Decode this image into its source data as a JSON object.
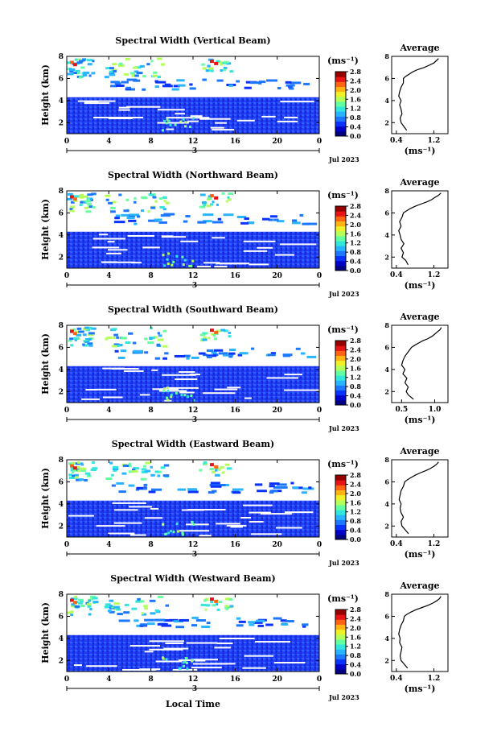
{
  "figure": {
    "date_label": "Jul 2023",
    "day_label": "3",
    "bottom_xlabel": "Local Time"
  },
  "colors": {
    "colormap": [
      "#000080",
      "#0000c8",
      "#0a32ff",
      "#1e78ff",
      "#28b4ff",
      "#32e6dc",
      "#64ffa0",
      "#b4ff5a",
      "#f0f028",
      "#ffb414",
      "#ff6414",
      "#e61414",
      "#960000"
    ],
    "trace": "#000000"
  },
  "chart_data": [
    {
      "type": "heatmap",
      "title": "Spectral Width (Vertical Beam)",
      "xlabel": "",
      "ylabel": "Height (km)",
      "x_ticks": [
        "0",
        "4",
        "8",
        "12",
        "16",
        "20",
        "0"
      ],
      "y_ticks": [
        "2",
        "4",
        "6",
        "8"
      ],
      "xlim": [
        0,
        24
      ],
      "ylim": [
        1,
        8
      ],
      "colorbar": {
        "label": "(ms⁻¹)",
        "ticks": [
          "0.0",
          "0.4",
          "0.8",
          "1.2",
          "1.6",
          "2.0",
          "2.4",
          "2.8"
        ],
        "range": [
          0,
          2.8
        ]
      },
      "average_profile": {
        "title": "Average",
        "xlabel": "(ms⁻¹)",
        "x_ticks": [
          "0.4",
          "1.2"
        ],
        "xlim": [
          0.3,
          1.5
        ],
        "y_ticks": [
          "2",
          "4",
          "6",
          "8"
        ],
        "x": [
          0.62,
          0.55,
          0.5,
          0.48,
          0.52,
          0.5,
          0.47,
          0.5,
          0.45,
          0.47,
          0.5,
          0.55,
          0.55,
          0.6,
          0.68,
          0.75,
          0.85,
          1.0,
          1.1,
          1.2,
          1.25,
          1.3
        ],
        "y": [
          1.3,
          1.7,
          2.0,
          2.4,
          2.8,
          3.2,
          3.6,
          4.0,
          4.4,
          4.8,
          5.2,
          5.6,
          6.0,
          6.2,
          6.4,
          6.6,
          6.8,
          7.0,
          7.2,
          7.4,
          7.6,
          7.8
        ]
      }
    },
    {
      "type": "heatmap",
      "title": "Spectral Width (Northward Beam)",
      "xlabel": "",
      "ylabel": "Height (km)",
      "x_ticks": [
        "0",
        "4",
        "8",
        "12",
        "16",
        "20",
        "0"
      ],
      "y_ticks": [
        "2",
        "4",
        "6",
        "8"
      ],
      "xlim": [
        0,
        24
      ],
      "ylim": [
        1,
        8
      ],
      "colorbar": {
        "label": "(ms⁻¹)",
        "ticks": [
          "0.0",
          "0.4",
          "0.8",
          "1.2",
          "1.6",
          "2.0",
          "2.4",
          "2.8"
        ],
        "range": [
          0,
          2.8
        ]
      },
      "average_profile": {
        "title": "Average",
        "xlabel": "(ms⁻¹)",
        "x_ticks": [
          "0.4",
          "1.2"
        ],
        "xlim": [
          0.3,
          1.5
        ],
        "y_ticks": [
          "2",
          "4",
          "6",
          "8"
        ],
        "x": [
          0.65,
          0.6,
          0.52,
          0.55,
          0.5,
          0.56,
          0.5,
          0.48,
          0.45,
          0.5,
          0.47,
          0.52,
          0.55,
          0.62,
          0.7,
          0.8,
          0.92,
          1.05,
          1.15,
          1.22,
          1.3,
          1.35
        ],
        "y": [
          1.3,
          1.7,
          2.0,
          2.4,
          2.8,
          3.2,
          3.6,
          4.0,
          4.4,
          4.8,
          5.2,
          5.6,
          6.0,
          6.2,
          6.4,
          6.6,
          6.8,
          7.0,
          7.2,
          7.4,
          7.6,
          7.8
        ]
      }
    },
    {
      "type": "heatmap",
      "title": "Spectral Width (Southward Beam)",
      "xlabel": "",
      "ylabel": "Height (km)",
      "x_ticks": [
        "0",
        "4",
        "8",
        "12",
        "16",
        "20",
        "0"
      ],
      "y_ticks": [
        "2",
        "4",
        "6",
        "8"
      ],
      "xlim": [
        0,
        24
      ],
      "ylim": [
        1,
        8
      ],
      "colorbar": {
        "label": "(ms⁻¹)",
        "ticks": [
          "0.0",
          "0.4",
          "0.8",
          "1.2",
          "1.6",
          "2.0",
          "2.4",
          "2.8"
        ],
        "range": [
          0,
          2.8
        ]
      },
      "average_profile": {
        "title": "Average",
        "xlabel": "(ms⁻¹)",
        "x_ticks": [
          "0.5",
          "1.0"
        ],
        "xlim": [
          0.35,
          1.2
        ],
        "y_ticks": [
          "2",
          "4",
          "6",
          "8"
        ],
        "x": [
          0.68,
          0.6,
          0.57,
          0.6,
          0.55,
          0.58,
          0.52,
          0.55,
          0.5,
          0.52,
          0.55,
          0.6,
          0.65,
          0.7,
          0.76,
          0.82,
          0.9,
          0.96,
          1.0,
          1.04,
          1.08,
          1.1
        ],
        "y": [
          1.3,
          1.7,
          2.0,
          2.4,
          2.8,
          3.2,
          3.6,
          4.0,
          4.4,
          4.8,
          5.2,
          5.6,
          6.0,
          6.2,
          6.4,
          6.6,
          6.8,
          7.0,
          7.2,
          7.4,
          7.6,
          7.8
        ]
      }
    },
    {
      "type": "heatmap",
      "title": "Spectral Width (Eastward Beam)",
      "xlabel": "",
      "ylabel": "Height (km)",
      "x_ticks": [
        "0",
        "4",
        "8",
        "12",
        "16",
        "20",
        "0"
      ],
      "y_ticks": [
        "2",
        "4",
        "6",
        "8"
      ],
      "xlim": [
        0,
        24
      ],
      "ylim": [
        1,
        8
      ],
      "colorbar": {
        "label": "(ms⁻¹)",
        "ticks": [
          "0.0",
          "0.4",
          "0.8",
          "1.2",
          "1.6",
          "2.0",
          "2.4",
          "2.8"
        ],
        "range": [
          0,
          2.8
        ]
      },
      "average_profile": {
        "title": "Average",
        "xlabel": "(ms⁻¹)",
        "x_ticks": [
          "0.4",
          "1.2"
        ],
        "xlim": [
          0.3,
          1.5
        ],
        "y_ticks": [
          "2",
          "4",
          "6",
          "8"
        ],
        "x": [
          0.66,
          0.58,
          0.52,
          0.5,
          0.55,
          0.5,
          0.48,
          0.5,
          0.46,
          0.48,
          0.5,
          0.55,
          0.58,
          0.64,
          0.72,
          0.8,
          0.9,
          1.02,
          1.12,
          1.2,
          1.26,
          1.3
        ],
        "y": [
          1.3,
          1.7,
          2.0,
          2.4,
          2.8,
          3.2,
          3.6,
          4.0,
          4.4,
          4.8,
          5.2,
          5.6,
          6.0,
          6.2,
          6.4,
          6.6,
          6.8,
          7.0,
          7.2,
          7.4,
          7.6,
          7.8
        ]
      }
    },
    {
      "type": "heatmap",
      "title": "Spectral Width (Westward Beam)",
      "xlabel": "Local Time",
      "ylabel": "Height (km)",
      "x_ticks": [
        "0",
        "4",
        "8",
        "12",
        "16",
        "20",
        "0"
      ],
      "y_ticks": [
        "2",
        "4",
        "6",
        "8"
      ],
      "xlim": [
        0,
        24
      ],
      "ylim": [
        1,
        8
      ],
      "colorbar": {
        "label": "(ms⁻¹)",
        "ticks": [
          "0.0",
          "0.4",
          "0.8",
          "1.2",
          "1.6",
          "2.0",
          "2.4",
          "2.8"
        ],
        "range": [
          0,
          2.8
        ]
      },
      "average_profile": {
        "title": "Average",
        "xlabel": "(ms⁻¹)",
        "x_ticks": [
          "0.4",
          "1.2"
        ],
        "xlim": [
          0.3,
          1.5
        ],
        "y_ticks": [
          "2",
          "4",
          "6",
          "8"
        ],
        "x": [
          0.64,
          0.56,
          0.5,
          0.48,
          0.5,
          0.52,
          0.47,
          0.48,
          0.45,
          0.47,
          0.5,
          0.55,
          0.57,
          0.63,
          0.72,
          0.82,
          0.95,
          1.08,
          1.18,
          1.26,
          1.32,
          1.35
        ],
        "y": [
          1.3,
          1.7,
          2.0,
          2.4,
          2.8,
          3.2,
          3.6,
          4.0,
          4.4,
          4.8,
          5.2,
          5.6,
          6.0,
          6.2,
          6.4,
          6.6,
          6.8,
          7.0,
          7.2,
          7.4,
          7.6,
          7.8
        ]
      }
    }
  ]
}
